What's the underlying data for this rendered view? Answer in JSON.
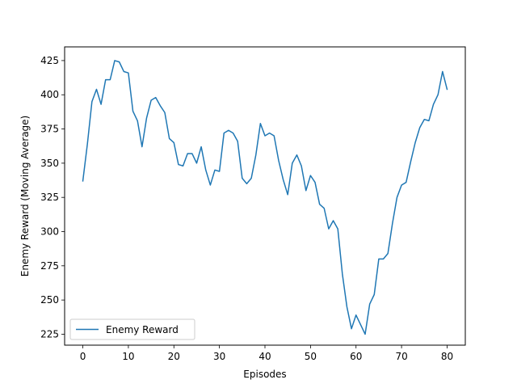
{
  "chart_data": {
    "type": "line",
    "title": "",
    "xlabel": "Episodes",
    "ylabel": "Enemy Reward (Moving Average)",
    "xlim": [
      -4,
      84
    ],
    "ylim": [
      217,
      435
    ],
    "xticks": [
      0,
      10,
      20,
      30,
      40,
      50,
      60,
      70,
      80
    ],
    "yticks": [
      225,
      250,
      275,
      300,
      325,
      350,
      375,
      400,
      425
    ],
    "grid": false,
    "legend_position": "lower-left",
    "series": [
      {
        "name": "Enemy Reward",
        "color": "#1f77b4",
        "x": [
          0,
          1,
          2,
          3,
          4,
          5,
          6,
          7,
          8,
          9,
          10,
          11,
          12,
          13,
          14,
          15,
          16,
          17,
          18,
          19,
          20,
          21,
          22,
          23,
          24,
          25,
          26,
          27,
          28,
          29,
          30,
          31,
          32,
          33,
          34,
          35,
          36,
          37,
          38,
          39,
          40,
          41,
          42,
          43,
          44,
          45,
          46,
          47,
          48,
          49,
          50,
          51,
          52,
          53,
          54,
          55,
          56,
          57,
          58,
          59,
          60,
          61,
          62,
          63,
          64,
          65,
          66,
          67,
          68,
          69,
          70,
          71,
          72,
          73,
          74,
          75,
          76,
          77,
          78,
          79,
          80
        ],
        "values": [
          337,
          364,
          395,
          404,
          393,
          411,
          411,
          425,
          424,
          417,
          416,
          388,
          381,
          362,
          383,
          396,
          398,
          392,
          387,
          368,
          365,
          349,
          348,
          357,
          357,
          350,
          362,
          345,
          334,
          345,
          344,
          372,
          374,
          372,
          366,
          339,
          335,
          339,
          356,
          379,
          370,
          372,
          370,
          352,
          338,
          327,
          350,
          356,
          348,
          330,
          341,
          336,
          320,
          317,
          302,
          308,
          302,
          269,
          245,
          229,
          239,
          232,
          225,
          247,
          254,
          280,
          280,
          284,
          306,
          325,
          334,
          336,
          351,
          365,
          376,
          382,
          381,
          393,
          400,
          417,
          404
        ]
      }
    ]
  }
}
